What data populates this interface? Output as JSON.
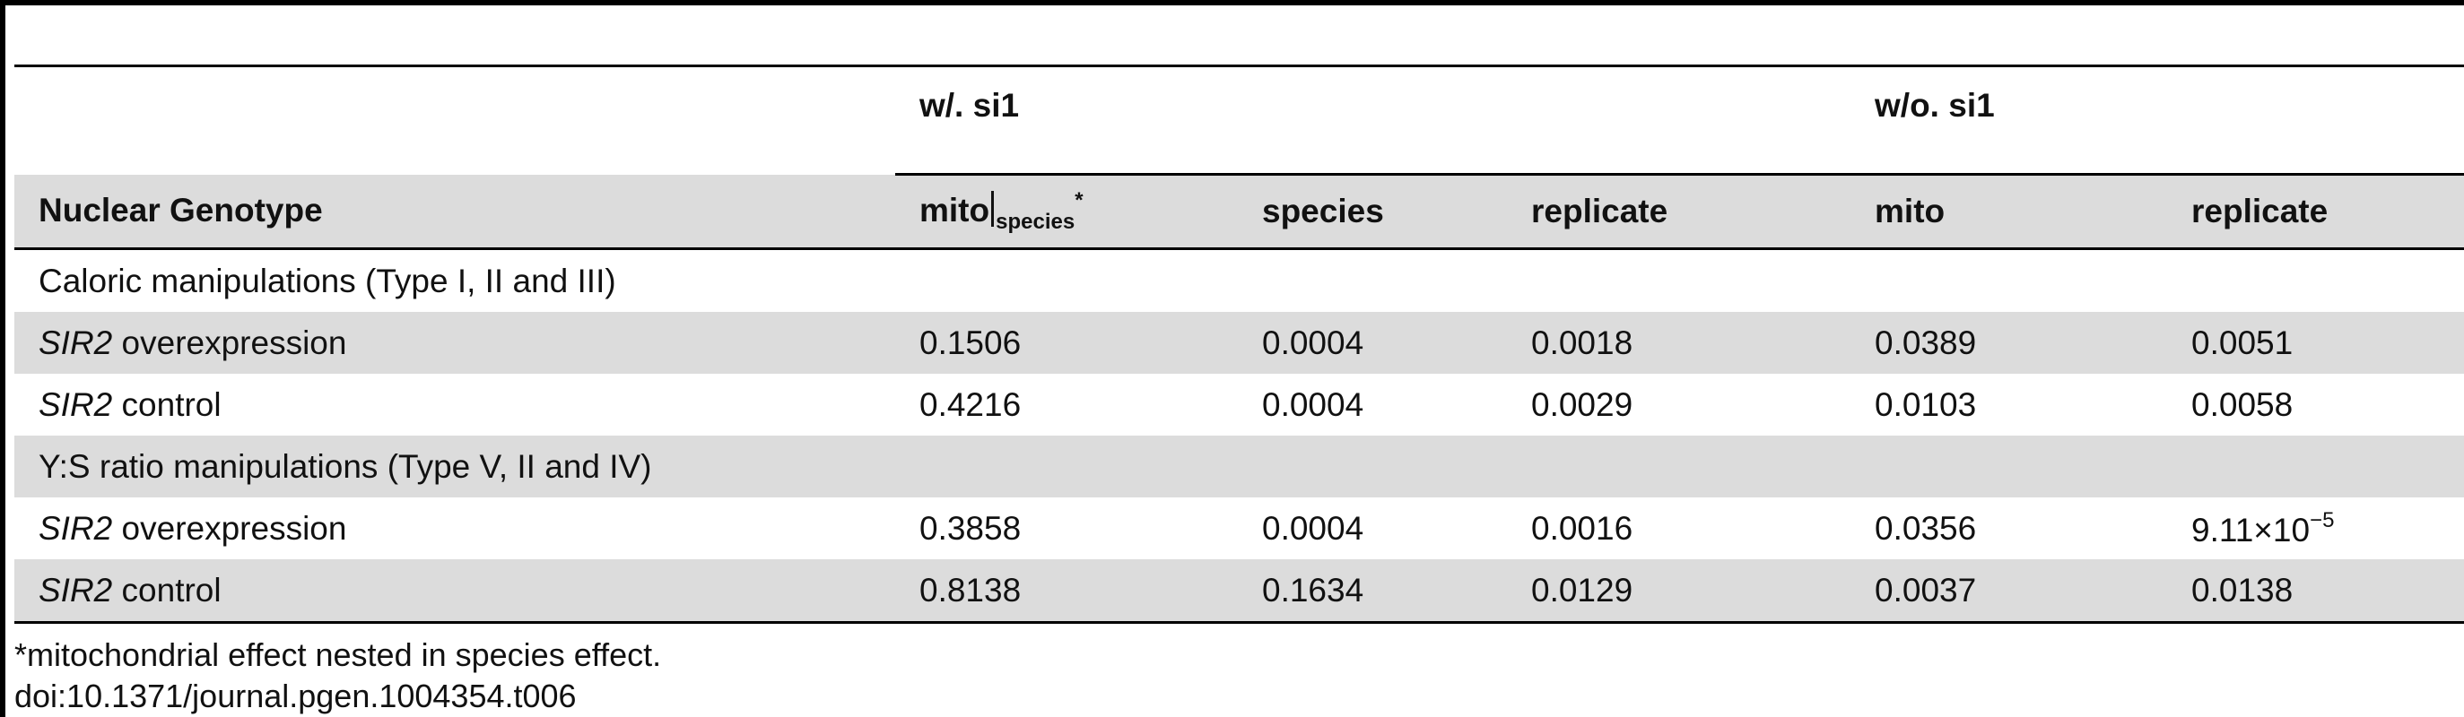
{
  "table": {
    "group_headers": {
      "with_si1": "w/. si1",
      "without_si1": "w/o. si1"
    },
    "columns": {
      "genotype": "Nuclear Genotype",
      "mito_nested_main": "mito",
      "mito_nested_sub": "species",
      "mito_nested_mark": "*",
      "species": "species",
      "replicate": "replicate",
      "mito": "mito",
      "replicate2": "replicate"
    },
    "sections": [
      {
        "title": "Caloric manipulations (Type I, II and III)",
        "rows": [
          {
            "gene": "SIR2",
            "label": " overexpression",
            "mito_species": "0.1506",
            "species": "0.0004",
            "replicate": "0.0018",
            "mito": "0.0389",
            "replicate2": "0.0051"
          },
          {
            "gene": "SIR2",
            "label": " control",
            "mito_species": "0.4216",
            "species": "0.0004",
            "replicate": "0.0029",
            "mito": "0.0103",
            "replicate2": "0.0058"
          }
        ]
      },
      {
        "title": "Y:S ratio manipulations (Type V, II and IV)",
        "rows": [
          {
            "gene": "SIR2",
            "label": " overexpression",
            "mito_species": "0.3858",
            "species": "0.0004",
            "replicate": "0.0016",
            "mito": "0.0356",
            "replicate2_base": "9.11×10",
            "replicate2_exp": "−5"
          },
          {
            "gene": "SIR2",
            "label": " control",
            "mito_species": "0.8138",
            "species": "0.1634",
            "replicate": "0.0129",
            "mito": "0.0037",
            "replicate2": "0.0138"
          }
        ]
      }
    ]
  },
  "footnote": "*mitochondrial effect nested in species effect.",
  "doi": "doi:10.1371/journal.pgen.1004354.t006"
}
